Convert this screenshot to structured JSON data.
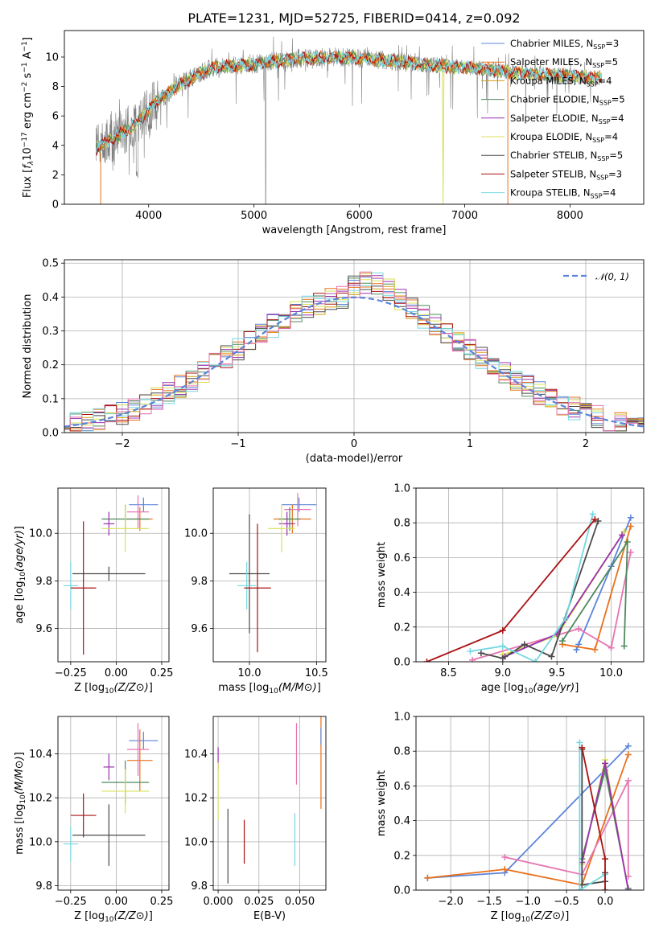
{
  "colors": {
    "Chabrier MILES": "#5b84d9",
    "Salpeter MILES": "#e8701a",
    "Kroupa MILES": "#d4a017",
    "Chabrier ELODIE": "#4e8a5e",
    "Salpeter ELODIE": "#9b30b0",
    "Kroupa ELODIE": "#d8e05a",
    "Chabrier STELIB": "#4a4a4a",
    "Salpeter STELIB": "#aa1111",
    "Kroupa STELIB": "#74d8e2",
    "pink": "#e774b0",
    "data": "#808080",
    "normal": "#5b84d9"
  },
  "chart_data": [
    {
      "id": "spectrum",
      "type": "line",
      "title": "PLATE=1231, MJD=52725, FIBERID=0414, z=0.092",
      "xlabel": "wavelength [Angstrom, rest frame]",
      "ylabel": "Flux [f_λ 10^-17 erg cm^-2 s^-1 A^-1]",
      "xlim": [
        3200,
        8700
      ],
      "ylim": [
        0,
        11.8
      ],
      "xticks": [
        4000,
        5000,
        6000,
        7000,
        8000
      ],
      "yticks": [
        0,
        2,
        4,
        6,
        8,
        10
      ],
      "legend_position": "top-right",
      "legend": [
        {
          "base": "Chabrier MILES, N",
          "sub": "SSP",
          "tail": "=3"
        },
        {
          "base": "Salpeter MILES, N",
          "sub": "SSP",
          "tail": "=5"
        },
        {
          "base": "Kroupa MILES, N",
          "sub": "SSP",
          "tail": "=4"
        },
        {
          "base": "Chabrier ELODIE, N",
          "sub": "SSP",
          "tail": "=5"
        },
        {
          "base": "Salpeter ELODIE, N",
          "sub": "SSP",
          "tail": "=4"
        },
        {
          "base": "Kroupa ELODIE, N",
          "sub": "SSP",
          "tail": "=4"
        },
        {
          "base": "Chabrier STELIB, N",
          "sub": "SSP",
          "tail": "=5"
        },
        {
          "base": "Salpeter STELIB, N",
          "sub": "SSP",
          "tail": "=3"
        },
        {
          "base": "Kroupa STELIB, N",
          "sub": "SSP",
          "tail": "=4"
        }
      ],
      "continuum": [
        [
          3500,
          3.8
        ],
        [
          3700,
          4.6
        ],
        [
          3900,
          5.6
        ],
        [
          4050,
          6.8
        ],
        [
          4300,
          8.2
        ],
        [
          4600,
          9.3
        ],
        [
          5000,
          9.5
        ],
        [
          5400,
          9.9
        ],
        [
          5800,
          10.0
        ],
        [
          6200,
          9.8
        ],
        [
          6600,
          9.5
        ],
        [
          7000,
          9.3
        ],
        [
          7400,
          9.0
        ],
        [
          7800,
          8.8
        ],
        [
          8200,
          8.6
        ],
        [
          8300,
          8.6
        ]
      ]
    },
    {
      "id": "residuals",
      "type": "bar",
      "xlabel": "(data-model)/error",
      "ylabel": "Normed distribution",
      "xlim": [
        -2.5,
        2.5
      ],
      "ylim": [
        0,
        0.51
      ],
      "xticks": [
        -2,
        -1,
        0,
        1,
        2
      ],
      "yticks": [
        0.0,
        0.1,
        0.2,
        0.3,
        0.4,
        0.5
      ],
      "legend": "𝒩(0, 1)",
      "bin_width": 0.1
    },
    {
      "id": "age-Z",
      "type": "scatter",
      "xlabel": "Z [log10(Z/Z⊙)]",
      "ylabel": "age [log10(age/yr)]",
      "xlim": [
        -0.32,
        0.29
      ],
      "ylim": [
        9.46,
        10.19
      ],
      "xticks": [
        -0.25,
        0.0,
        0.25
      ],
      "yticks": [
        9.6,
        9.8,
        10.0
      ],
      "errorbars": [
        {
          "c": "Chabrier MILES",
          "x": 0.15,
          "xe": 0.08,
          "y": 10.12,
          "ye": 0.03
        },
        {
          "c": "Salpeter MILES",
          "x": 0.13,
          "xe": 0.07,
          "y": 10.06,
          "ye": 0.05
        },
        {
          "c": "pink",
          "x": 0.12,
          "xe": 0.06,
          "y": 10.09,
          "ye": 0.07
        },
        {
          "c": "Chabrier ELODIE",
          "x": 0.05,
          "xe": 0.13,
          "y": 10.06,
          "ye": 0.06
        },
        {
          "c": "Salpeter ELODIE",
          "x": -0.04,
          "xe": 0.03,
          "y": 10.04,
          "ye": 0.05
        },
        {
          "c": "Kroupa ELODIE",
          "x": 0.05,
          "xe": 0.13,
          "y": 10.02,
          "ye": 0.1
        },
        {
          "c": "Chabrier STELIB",
          "x": -0.04,
          "xe": 0.2,
          "y": 9.83,
          "ye": 0.03
        },
        {
          "c": "Kroupa STELIB",
          "x": -0.25,
          "xe": 0.04,
          "y": 9.78,
          "ye": 0.1
        },
        {
          "c": "Salpeter STELIB",
          "x": -0.18,
          "xe": 0.07,
          "y": 9.77,
          "ye": 0.28
        }
      ]
    },
    {
      "id": "age-mass",
      "type": "scatter",
      "xlabel": "mass [log10(M/M⊙)]",
      "ylabel": "",
      "xlim": [
        9.73,
        10.57
      ],
      "ylim": [
        9.46,
        10.19
      ],
      "xticks": [
        10.0,
        10.5
      ],
      "yticks": [
        9.6,
        9.8,
        10.0
      ],
      "errorbars": [
        {
          "c": "Chabrier MILES",
          "x": 10.37,
          "xe": 0.13,
          "y": 10.12,
          "ye": 0.03
        },
        {
          "c": "Salpeter MILES",
          "x": 10.32,
          "xe": 0.14,
          "y": 10.06,
          "ye": 0.06
        },
        {
          "c": "pink",
          "x": 10.36,
          "xe": 0.1,
          "y": 10.1,
          "ye": 0.07
        },
        {
          "c": "Chabrier ELODIE",
          "x": 10.3,
          "xe": 0.08,
          "y": 10.06,
          "ye": 0.05
        },
        {
          "c": "Salpeter ELODIE",
          "x": 10.28,
          "xe": 0.06,
          "y": 10.04,
          "ye": 0.05
        },
        {
          "c": "Kroupa ELODIE",
          "x": 10.24,
          "xe": 0.1,
          "y": 10.02,
          "ye": 0.1
        },
        {
          "c": "Chabrier STELIB",
          "x": 10.0,
          "xe": 0.15,
          "y": 9.83,
          "ye": 0.25
        },
        {
          "c": "Kroupa STELIB",
          "x": 9.98,
          "xe": 0.07,
          "y": 9.78,
          "ye": 0.1
        },
        {
          "c": "Salpeter STELIB",
          "x": 10.06,
          "xe": 0.1,
          "y": 9.77,
          "ye": 0.27
        }
      ]
    },
    {
      "id": "weight-age",
      "type": "line",
      "xlabel": "age [log10(age/yr)]",
      "ylabel": "mass weight",
      "xlim": [
        8.2,
        10.3
      ],
      "ylim": [
        0,
        1.0
      ],
      "xticks": [
        8.5,
        9.0,
        9.5,
        10.0
      ],
      "yticks": [
        0.0,
        0.2,
        0.4,
        0.6,
        0.8,
        1.0
      ],
      "series": [
        {
          "c": "Chabrier MILES",
          "x": [
            9.68,
            9.7,
            10.0,
            10.18
          ],
          "y": [
            0.07,
            0.1,
            0.55,
            0.83
          ]
        },
        {
          "c": "Salpeter MILES",
          "x": [
            9.55,
            9.85,
            10.18
          ],
          "y": [
            0.1,
            0.07,
            0.78
          ]
        },
        {
          "c": "pink",
          "x": [
            8.72,
            9.7,
            10.0,
            10.18
          ],
          "y": [
            0.01,
            0.19,
            0.08,
            0.63
          ]
        },
        {
          "c": "Chabrier ELODIE",
          "x": [
            9.55,
            10.15,
            10.12
          ],
          "y": [
            0.12,
            0.69,
            0.09
          ]
        },
        {
          "c": "Kroupa ELODIE",
          "x": [
            9.0,
            9.5,
            10.12
          ],
          "y": [
            0.04,
            0.15,
            0.75
          ]
        },
        {
          "c": "Salpeter ELODIE",
          "x": [
            9.02,
            9.5,
            10.1
          ],
          "y": [
            0.03,
            0.16,
            0.73
          ]
        },
        {
          "c": "Chabrier STELIB",
          "x": [
            8.8,
            9.0,
            9.2,
            9.45,
            9.88
          ],
          "y": [
            0.05,
            0.02,
            0.1,
            0.03,
            0.81
          ]
        },
        {
          "c": "Kroupa STELIB",
          "x": [
            8.7,
            9.0,
            9.3,
            9.58,
            9.83
          ],
          "y": [
            0.06,
            0.09,
            0.0,
            0.25,
            0.85
          ]
        },
        {
          "c": "Salpeter STELIB",
          "x": [
            8.3,
            9.0,
            9.85
          ],
          "y": [
            0.0,
            0.18,
            0.82
          ]
        }
      ]
    },
    {
      "id": "mass-Z",
      "type": "scatter",
      "xlabel": "Z [log10(Z/Z⊙)]",
      "ylabel": "mass [log10(M/M⊙)]",
      "xlim": [
        -0.32,
        0.29
      ],
      "ylim": [
        9.78,
        10.57
      ],
      "xticks": [
        -0.25,
        0.0,
        0.25
      ],
      "yticks": [
        9.8,
        10.0,
        10.2,
        10.4
      ],
      "errorbars": [
        {
          "c": "Chabrier MILES",
          "x": 0.15,
          "xe": 0.08,
          "y": 10.46,
          "ye": 0.04
        },
        {
          "c": "Salpeter MILES",
          "x": 0.13,
          "xe": 0.07,
          "y": 10.37,
          "ye": 0.14
        },
        {
          "c": "pink",
          "x": 0.12,
          "xe": 0.06,
          "y": 10.42,
          "ye": 0.12
        },
        {
          "c": "Chabrier ELODIE",
          "x": 0.05,
          "xe": 0.13,
          "y": 10.27,
          "ye": 0.1
        },
        {
          "c": "Salpeter ELODIE",
          "x": -0.04,
          "xe": 0.03,
          "y": 10.34,
          "ye": 0.06
        },
        {
          "c": "Kroupa ELODIE",
          "x": 0.05,
          "xe": 0.13,
          "y": 10.23,
          "ye": 0.1
        },
        {
          "c": "Chabrier STELIB",
          "x": -0.04,
          "xe": 0.2,
          "y": 10.03,
          "ye": 0.14
        },
        {
          "c": "Kroupa STELIB",
          "x": -0.25,
          "xe": 0.04,
          "y": 9.99,
          "ye": 0.08
        },
        {
          "c": "Salpeter STELIB",
          "x": -0.18,
          "xe": 0.07,
          "y": 10.12,
          "ye": 0.1
        }
      ]
    },
    {
      "id": "mass-EBV",
      "type": "scatter",
      "xlabel": "E(B-V)",
      "ylabel": "",
      "xlim": [
        -0.003,
        0.066
      ],
      "ylim": [
        9.78,
        10.57
      ],
      "xticks": [
        0.0,
        0.025,
        0.05
      ],
      "xticklabels": [
        "0.000",
        "0.025",
        "0.050"
      ],
      "yticks": [
        9.8,
        10.0,
        10.2,
        10.4
      ],
      "errorbars": [
        {
          "c": "Salpeter ELODIE",
          "x": 0.0,
          "xe": 0,
          "y": 10.38,
          "ye": 0.05
        },
        {
          "c": "Kroupa ELODIE",
          "x": 0.0,
          "xe": 0,
          "y": 10.23,
          "ye": 0.13
        },
        {
          "c": "Chabrier STELIB",
          "x": 0.006,
          "xe": 0,
          "y": 9.98,
          "ye": 0.17
        },
        {
          "c": "Salpeter STELIB",
          "x": 0.016,
          "xe": 0,
          "y": 10.0,
          "ye": 0.1
        },
        {
          "c": "Kroupa STELIB",
          "x": 0.047,
          "xe": 0,
          "y": 10.01,
          "ye": 0.12
        },
        {
          "c": "pink",
          "x": 0.048,
          "xe": 0,
          "y": 10.4,
          "ye": 0.14
        },
        {
          "c": "Salpeter MILES",
          "x": 0.063,
          "xe": 0,
          "y": 10.4,
          "ye": 0.25
        },
        {
          "c": "Chabrier MILES",
          "x": 0.063,
          "xe": 0,
          "y": 10.48,
          "ye": 0.04
        }
      ]
    },
    {
      "id": "weight-Z",
      "type": "line",
      "xlabel": "Z [log10(Z/Z⊙)]",
      "ylabel": "mass weight",
      "xlim": [
        -2.45,
        0.5
      ],
      "ylim": [
        0,
        1.0
      ],
      "xticks": [
        -2.0,
        -1.5,
        -1.0,
        -0.5,
        0.0
      ],
      "yticks": [
        0.0,
        0.2,
        0.4,
        0.6,
        0.8,
        1.0
      ],
      "series": [
        {
          "c": "Chabrier MILES",
          "x": [
            -2.3,
            -1.3,
            0.3
          ],
          "y": [
            0.07,
            0.1,
            0.83
          ]
        },
        {
          "c": "Salpeter MILES",
          "x": [
            -2.3,
            -1.3,
            -0.3,
            0.3
          ],
          "y": [
            0.07,
            0.12,
            0.03,
            0.78
          ]
        },
        {
          "c": "pink",
          "x": [
            -1.3,
            -0.3,
            0.3,
            0.3
          ],
          "y": [
            0.19,
            0.09,
            0.63,
            0.08
          ]
        },
        {
          "c": "Chabrier ELODIE",
          "x": [
            -0.3,
            0.0,
            0.3
          ],
          "y": [
            0.18,
            0.69,
            0.01
          ]
        },
        {
          "c": "Kroupa ELODIE",
          "x": [
            -0.3,
            0.0,
            0.3
          ],
          "y": [
            0.15,
            0.75,
            0.0
          ]
        },
        {
          "c": "Salpeter ELODIE",
          "x": [
            -0.3,
            0.0,
            0.3
          ],
          "y": [
            0.16,
            0.73,
            0.0
          ]
        },
        {
          "c": "Chabrier STELIB",
          "x": [
            -0.3,
            -0.3,
            0.0,
            0.0
          ],
          "y": [
            0.81,
            0.03,
            0.05,
            0.1
          ]
        },
        {
          "c": "Kroupa STELIB",
          "x": [
            -0.33,
            -0.33,
            0.0
          ],
          "y": [
            0.85,
            0.0,
            0.09
          ]
        },
        {
          "c": "Salpeter STELIB",
          "x": [
            -0.3,
            0.0,
            0.0
          ],
          "y": [
            0.82,
            0.18,
            0.0
          ]
        }
      ]
    }
  ]
}
